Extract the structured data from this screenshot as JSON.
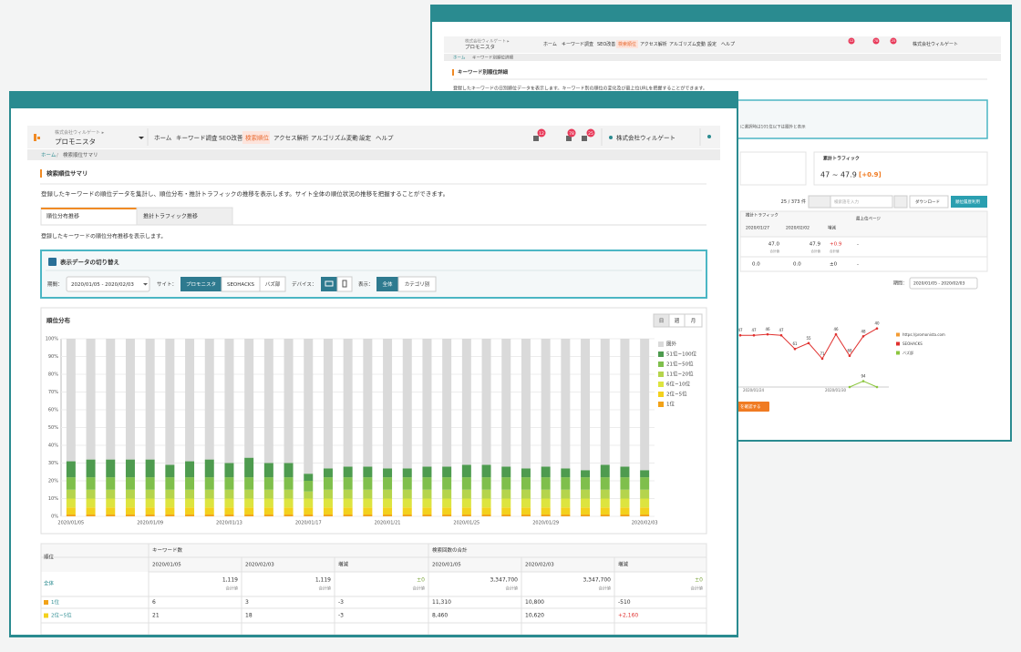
{
  "back_window": {
    "header": {
      "company": "株式会社ウィルゲート ▸",
      "site": "プロモニスタ",
      "nav": [
        "ホーム",
        "キーワード調査",
        "SEO改善",
        "検索順位",
        "アクセス解析",
        "アルゴリズム変動",
        "設定",
        "ヘルプ"
      ],
      "badges": [
        "12",
        "78",
        "25"
      ],
      "account": "株式会社ウィルゲート"
    },
    "breadcrumb": [
      "ホーム",
      "キーワード別順位詳細"
    ],
    "title": "キーワード別順位詳細",
    "description": "登録したキーワードの日別順位データを表示します。キーワード別の順位の変化及び最上位URLを把握することができます。",
    "notice": "に選択時は101位以下は圏外と表示",
    "traffic_label": "累計トラフィック",
    "traffic_value": "47 ~ 47.9",
    "traffic_change": "[+0.9]",
    "count": "25 / 373 件",
    "search_placeholder": "検索語を入力",
    "download": "ダウンロード",
    "bulk": "順位履歴利用",
    "table": {
      "group": "推計トラフィック",
      "columns": [
        "2020/01/27",
        "2020/02/02",
        "増減",
        "最上位ページ"
      ],
      "note": "合計値",
      "rows": [
        [
          "47.0",
          "47.9",
          "+0.9",
          "-"
        ],
        [
          "0.0",
          "0.0",
          "±0",
          "-"
        ]
      ]
    },
    "period_label": "期間：",
    "period": "2020/01/05 - 2020/02/03",
    "button": "を確認する"
  },
  "front_window": {
    "header": {
      "company": "株式会社ウィルゲート ▸",
      "site": "プロモニスタ",
      "nav": [
        "ホーム",
        "キーワード調査",
        "SEO改善",
        "検索順位",
        "アクセス解析",
        "アルゴリズム変動",
        "設定",
        "ヘルプ"
      ],
      "badges": [
        "12",
        "78",
        "25"
      ],
      "account": "株式会社ウィルゲート"
    },
    "breadcrumb": [
      "ホーム",
      "検索順位サマリ"
    ],
    "title": "検索順位サマリ",
    "description": "登録したキーワードの順位データを集計し、順位分布・推計トラフィックの推移を表示します。サイト全体の順位状況の推移を把握することができます。",
    "tabs": [
      "順位分布推移",
      "推計トラフィック推移"
    ],
    "tab_description": "登録したキーワードの順位分布推移を表示します。",
    "filter": {
      "title": "表示データの切り替え",
      "period_label": "期間：",
      "period": "2020/01/05 - 2020/02/03",
      "site_label": "サイト：",
      "sites": [
        "プロモニスタ",
        "SEOHACKS",
        "バズ部"
      ],
      "device_label": "デバイス：",
      "view_label": "表示：",
      "views": [
        "全体",
        "カテゴリ別"
      ]
    },
    "period_buttons": [
      "日",
      "週",
      "月"
    ],
    "table": {
      "corner": "順位",
      "groups": [
        "キーワード数",
        "検索回数の合計"
      ],
      "columns": [
        "2020/01/05",
        "2020/02/03",
        "増減",
        "2020/01/05",
        "2020/02/03",
        "増減"
      ],
      "note": "合計値",
      "rows": [
        {
          "label": "全体",
          "cells": [
            "1,119",
            "1,119",
            "±0",
            "3,347,700",
            "3,347,700",
            "±0"
          ]
        },
        {
          "label": "1位",
          "cells": [
            "6",
            "3",
            "-3",
            "11,310",
            "10,800",
            "-510"
          ]
        },
        {
          "label": "2位~5位",
          "cells": [
            "21",
            "18",
            "-3",
            "8,460",
            "10,620",
            "+2,160"
          ]
        }
      ]
    }
  },
  "chart_data": [
    {
      "type": "bar",
      "stacked": true,
      "title": "順位分布",
      "categories": [
        "2020/01/05",
        null,
        null,
        null,
        "2020/01/09",
        null,
        null,
        null,
        "2020/01/13",
        null,
        null,
        null,
        "2020/01/17",
        null,
        null,
        null,
        "2020/01/21",
        null,
        null,
        null,
        "2020/01/25",
        null,
        null,
        null,
        "2020/01/29",
        null,
        null,
        null,
        null,
        "2020/02/03"
      ],
      "series": [
        {
          "name": "圏外",
          "color": "#dadada",
          "values": [
            69,
            68,
            68,
            68,
            68,
            71,
            69,
            68,
            70,
            67,
            70,
            70,
            76,
            73,
            72,
            72,
            73,
            73,
            72,
            72,
            71,
            71,
            72,
            73,
            72,
            73,
            74,
            71,
            72,
            74
          ]
        },
        {
          "name": "51位~100位",
          "color": "#4e9b4f",
          "values": [
            9,
            10,
            10,
            10,
            10,
            7,
            9,
            10,
            8,
            11,
            8,
            8,
            4,
            5,
            6,
            6,
            5,
            5,
            6,
            6,
            7,
            7,
            6,
            5,
            6,
            5,
            4,
            7,
            6,
            4
          ]
        },
        {
          "name": "21位~50位",
          "color": "#7fbf4c",
          "values": [
            7,
            7,
            7,
            7,
            7,
            7,
            7,
            7,
            7,
            7,
            7,
            7,
            6,
            7,
            7,
            7,
            7,
            7,
            7,
            7,
            7,
            7,
            7,
            7,
            7,
            7,
            7,
            7,
            7,
            7
          ]
        },
        {
          "name": "11位~20位",
          "color": "#b5d44c",
          "values": [
            5,
            5,
            5,
            5,
            5,
            5,
            5,
            5,
            5,
            5,
            5,
            5,
            4,
            5,
            5,
            5,
            5,
            5,
            5,
            5,
            5,
            5,
            5,
            5,
            5,
            5,
            5,
            5,
            5,
            5
          ]
        },
        {
          "name": "6位~10位",
          "color": "#dde43f",
          "values": [
            5,
            5,
            5,
            5,
            5,
            5,
            5,
            5,
            5,
            5,
            5,
            5,
            5,
            5,
            5,
            5,
            5,
            5,
            5,
            5,
            5,
            5,
            5,
            5,
            5,
            5,
            5,
            5,
            5,
            5
          ]
        },
        {
          "name": "2位~5位",
          "color": "#f3d11d",
          "values": [
            4,
            4,
            4,
            4,
            4,
            4,
            4,
            4,
            4,
            4,
            4,
            4,
            4,
            4,
            4,
            4,
            4,
            4,
            4,
            4,
            4,
            4,
            4,
            4,
            4,
            4,
            4,
            4,
            4,
            4
          ]
        },
        {
          "name": "1位",
          "color": "#f2a218",
          "values": [
            1,
            1,
            1,
            1,
            1,
            1,
            1,
            1,
            1,
            1,
            1,
            1,
            1,
            1,
            1,
            1,
            1,
            1,
            1,
            1,
            1,
            1,
            1,
            1,
            1,
            1,
            1,
            1,
            1,
            1
          ]
        }
      ],
      "ylim": [
        0,
        100
      ],
      "yticks": [
        {
          "value": 0,
          "label": "0%"
        },
        {
          "value": 10,
          "label": "10%"
        },
        {
          "value": 20,
          "label": "20%"
        },
        {
          "value": 30,
          "label": "30%"
        },
        {
          "value": 40,
          "label": "40%"
        },
        {
          "value": 50,
          "label": "50%"
        },
        {
          "value": 60,
          "label": "60%"
        },
        {
          "value": 70,
          "label": "70%"
        },
        {
          "value": 80,
          "label": "80%"
        },
        {
          "value": 90,
          "label": "90%"
        },
        {
          "value": 100,
          "label": "100%"
        }
      ],
      "grid": true,
      "legend": "right"
    },
    {
      "type": "line",
      "categories": [
        "2020/01/24",
        null,
        null,
        null,
        null,
        null,
        "2020/01/30",
        null,
        null,
        null,
        null
      ],
      "series": [
        {
          "name": "https://promonista.com",
          "color": "#f39c34",
          "values": [
            null,
            null,
            null,
            null,
            null,
            null,
            null,
            null,
            null,
            null,
            null
          ]
        },
        {
          "name": "SEOHACKS",
          "color": "#e0302e",
          "values": [
            47,
            47,
            46,
            47,
            61,
            55,
            71,
            46,
            68,
            48,
            40
          ]
        },
        {
          "name": "バズ部",
          "color": "#8cc63f",
          "values": [
            null,
            null,
            null,
            null,
            null,
            null,
            null,
            null,
            100,
            94,
            100
          ]
        }
      ],
      "ylim": [
        30,
        100
      ],
      "y_inverted": true,
      "legend": "right"
    }
  ]
}
